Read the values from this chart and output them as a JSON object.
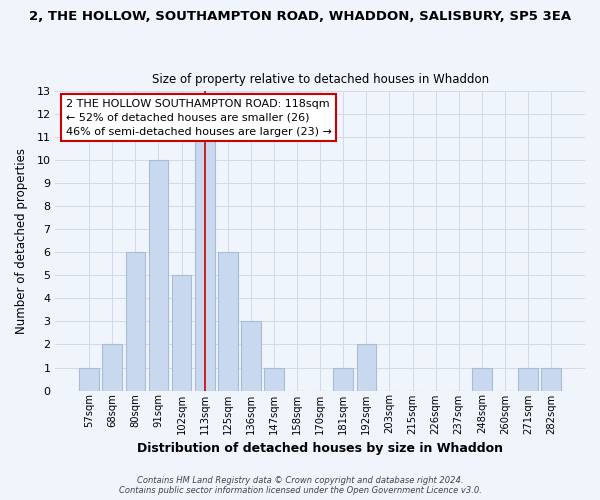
{
  "title": "2, THE HOLLOW, SOUTHAMPTON ROAD, WHADDON, SALISBURY, SP5 3EA",
  "subtitle": "Size of property relative to detached houses in Whaddon",
  "xlabel": "Distribution of detached houses by size in Whaddon",
  "ylabel": "Number of detached properties",
  "bar_labels": [
    "57sqm",
    "68sqm",
    "80sqm",
    "91sqm",
    "102sqm",
    "113sqm",
    "125sqm",
    "136sqm",
    "147sqm",
    "158sqm",
    "170sqm",
    "181sqm",
    "192sqm",
    "203sqm",
    "215sqm",
    "226sqm",
    "237sqm",
    "248sqm",
    "260sqm",
    "271sqm",
    "282sqm"
  ],
  "bar_values": [
    1,
    2,
    6,
    10,
    5,
    11,
    6,
    3,
    1,
    0,
    0,
    1,
    2,
    0,
    0,
    0,
    0,
    1,
    0,
    1,
    1
  ],
  "bar_color": "#c8d8ee",
  "bar_edge_color": "#a8bcd8",
  "highlight_bar_index": 5,
  "highlight_line_color": "#cc0000",
  "ylim": [
    0,
    13
  ],
  "yticks": [
    0,
    1,
    2,
    3,
    4,
    5,
    6,
    7,
    8,
    9,
    10,
    11,
    12,
    13
  ],
  "annotation_title": "2 THE HOLLOW SOUTHAMPTON ROAD: 118sqm",
  "annotation_line1": "← 52% of detached houses are smaller (26)",
  "annotation_line2": "46% of semi-detached houses are larger (23) →",
  "annotation_box_color": "#ffffff",
  "annotation_box_edge": "#cc0000",
  "footer_line1": "Contains HM Land Registry data © Crown copyright and database right 2024.",
  "footer_line2": "Contains public sector information licensed under the Open Government Licence v3.0.",
  "grid_color": "#d0daea",
  "background_color": "#f0f4fb"
}
